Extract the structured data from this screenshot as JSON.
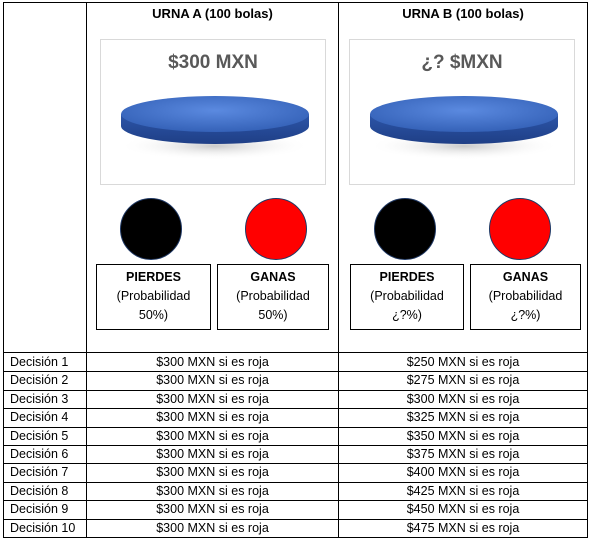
{
  "urn_a": {
    "title": "URNA A (100 bolas)",
    "amount": "$300 MXN",
    "lose_label": "PIERDES",
    "lose_prob_1": "(Probabilidad",
    "lose_prob_2": "50%)",
    "win_label": "GANAS",
    "win_prob_1": "(Probabilidad",
    "win_prob_2": "50%)"
  },
  "urn_b": {
    "title": "URNA B (100 bolas)",
    "amount": "¿? $MXN",
    "lose_label": "PIERDES",
    "lose_prob_1": "(Probabilidad",
    "lose_prob_2": "¿?%)",
    "win_label": "GANAS",
    "win_prob_1": "(Probabilidad",
    "win_prob_2": "¿?%)"
  },
  "colors": {
    "urn_blue": "#3a6bc4",
    "ball_black": "#000000",
    "ball_red": "#ff0000",
    "ball_border": "#1f3864"
  },
  "decisions": [
    {
      "label": "Decisión 1",
      "a": "$300 MXN si es roja",
      "b": "$250 MXN si es roja"
    },
    {
      "label": "Decisión 2",
      "a": "$300 MXN si es roja",
      "b": "$275 MXN si es roja"
    },
    {
      "label": "Decisión 3",
      "a": "$300 MXN si es roja",
      "b": "$300 MXN si es roja"
    },
    {
      "label": "Decisión 4",
      "a": "$300 MXN si es roja",
      "b": "$325 MXN si es roja"
    },
    {
      "label": "Decisión 5",
      "a": "$300 MXN si es roja",
      "b": "$350 MXN si es roja"
    },
    {
      "label": "Decisión 6",
      "a": "$300 MXN si es roja",
      "b": "$375 MXN si es roja"
    },
    {
      "label": "Decisión 7",
      "a": "$300 MXN si es roja",
      "b": "$400 MXN si es roja"
    },
    {
      "label": "Decisión 8",
      "a": "$300 MXN si es roja",
      "b": "$425 MXN si es roja"
    },
    {
      "label": "Decisión 9",
      "a": "$300 MXN si es roja",
      "b": "$450 MXN si es roja"
    },
    {
      "label": "Decisión 10",
      "a": "$300 MXN si es roja",
      "b": "$475 MXN si es roja"
    }
  ]
}
